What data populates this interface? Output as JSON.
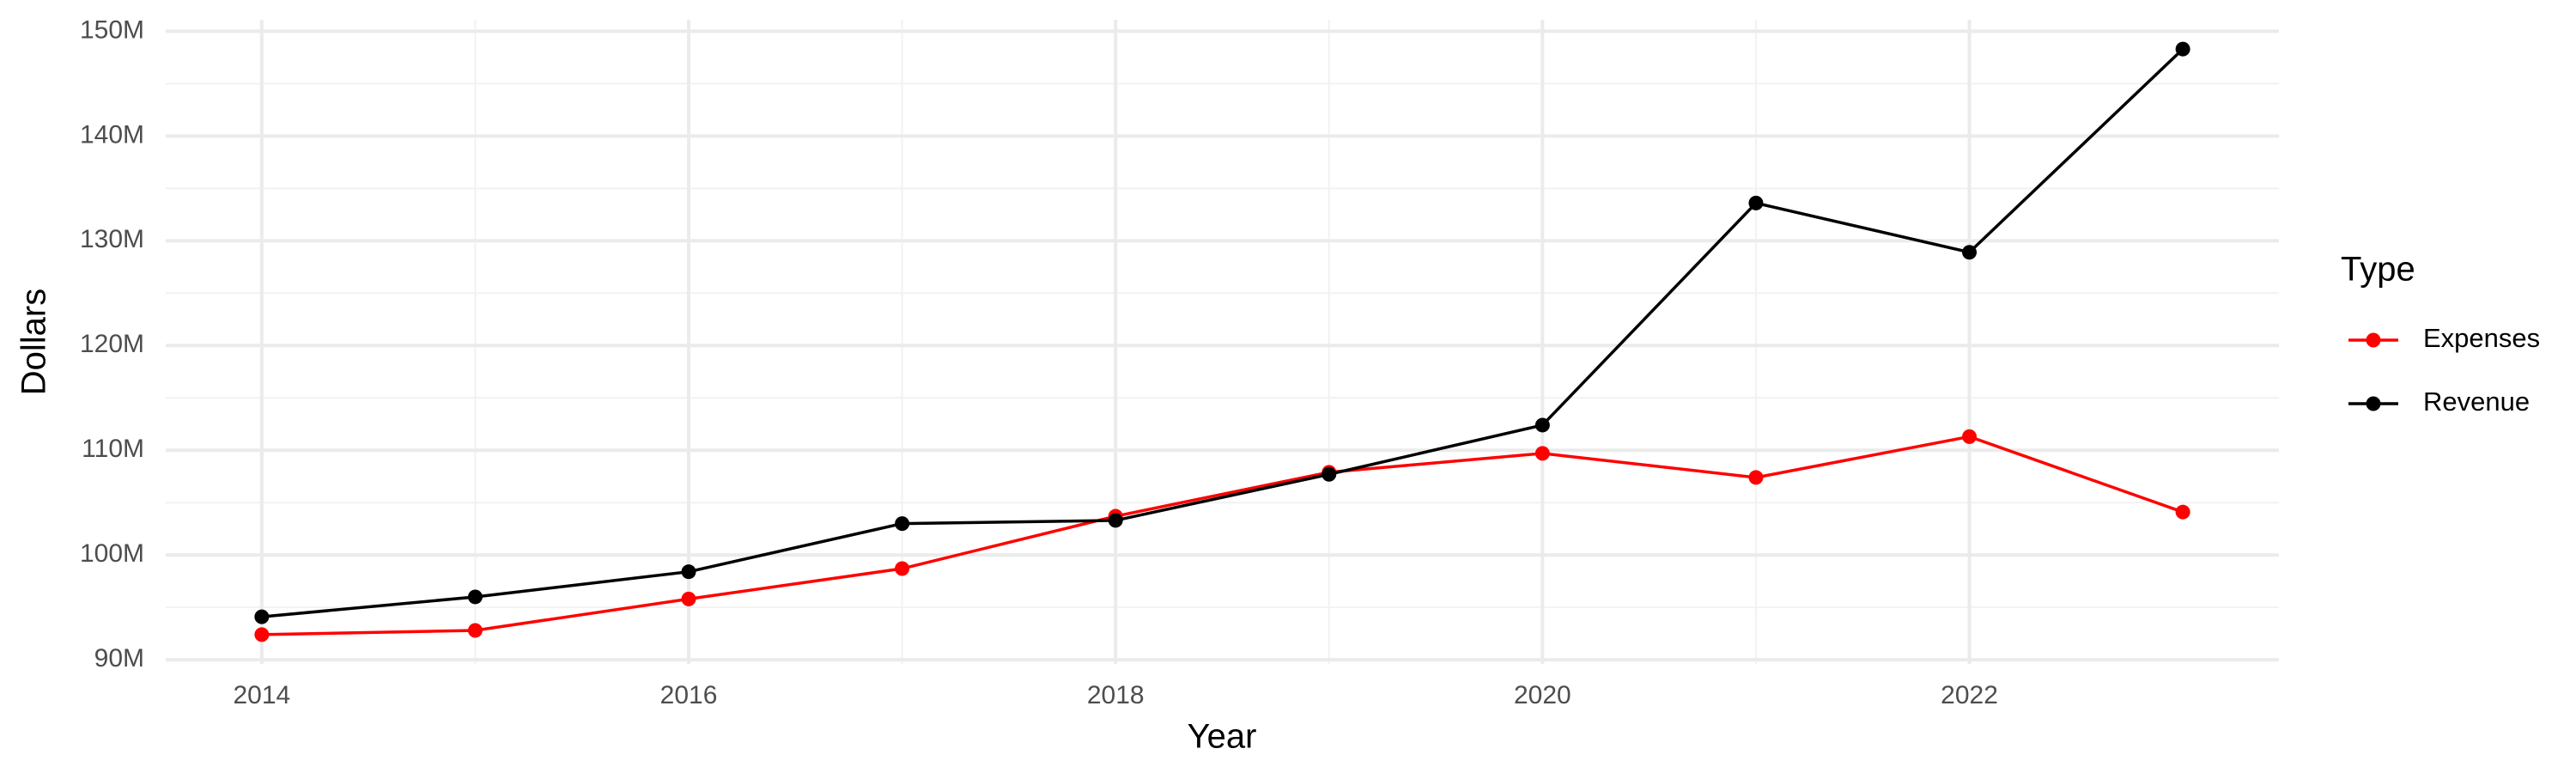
{
  "chart_data": {
    "type": "line",
    "x_label": "Year",
    "y_label": "Dollars",
    "legend_title": "Type",
    "legend_position": "right",
    "grid": true,
    "x": [
      2014,
      2015,
      2016,
      2017,
      2018,
      2019,
      2020,
      2021,
      2022,
      2023
    ],
    "series": [
      {
        "name": "Expenses",
        "color": "#ff0000",
        "values": [
          92400000,
          92800000,
          95800000,
          98700000,
          103700000,
          107900000,
          109700000,
          107400000,
          111300000,
          104100000
        ]
      },
      {
        "name": "Revenue",
        "color": "#000000",
        "values": [
          94100000,
          96000000,
          98400000,
          103000000,
          103300000,
          107700000,
          112400000,
          133600000,
          128900000,
          148300000
        ]
      }
    ],
    "xlim": [
      2013.55,
      2023.45
    ],
    "xticks": [
      2014,
      2016,
      2018,
      2020,
      2022
    ],
    "ylim": [
      89600000,
      151100000
    ],
    "yticks": [
      {
        "value": 90000000,
        "label": "90M"
      },
      {
        "value": 100000000,
        "label": "100M"
      },
      {
        "value": 110000000,
        "label": "110M"
      },
      {
        "value": 120000000,
        "label": "120M"
      },
      {
        "value": 130000000,
        "label": "130M"
      },
      {
        "value": 140000000,
        "label": "140M"
      },
      {
        "value": 150000000,
        "label": "150M"
      }
    ]
  }
}
